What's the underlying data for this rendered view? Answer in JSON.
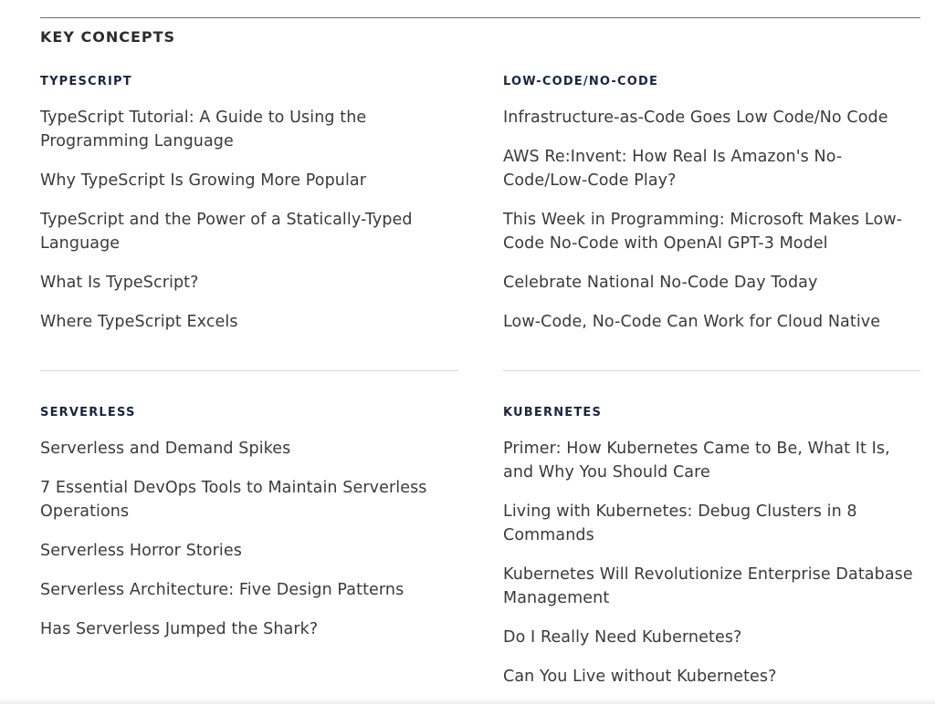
{
  "key_concepts_label": "KEY CONCEPTS",
  "sections": [
    {
      "heading": "TYPESCRIPT",
      "articles": [
        "TypeScript Tutorial: A Guide to Using the Programming Language",
        "Why TypeScript Is Growing More Popular",
        "TypeScript and the Power of a Statically-Typed Language",
        "What Is TypeScript?",
        "Where TypeScript Excels"
      ]
    },
    {
      "heading": "LOW-CODE/NO-CODE",
      "articles": [
        "Infrastructure-as-Code Goes Low Code/No Code",
        "AWS Re:Invent: How Real Is Amazon's No-Code/Low-Code Play?",
        "This Week in Programming: Microsoft Makes Low-Code No-Code with OpenAI GPT-3 Model",
        "Celebrate National No-Code Day Today",
        "Low-Code, No-Code Can Work for Cloud Native"
      ]
    },
    {
      "heading": "SERVERLESS",
      "articles": [
        "Serverless and Demand Spikes",
        "7 Essential DevOps Tools to Maintain Serverless Operations",
        "Serverless Horror Stories",
        "Serverless Architecture: Five Design Patterns",
        "Has Serverless Jumped the Shark?"
      ]
    },
    {
      "heading": "KUBERNETES",
      "articles": [
        "Primer: How Kubernetes Came to Be, What It Is, and Why You Should Care",
        "Living with Kubernetes: Debug Clusters in 8 Commands",
        "Kubernetes Will Revolutionize Enterprise Database Management",
        "Do I Really Need Kubernetes?",
        "Can You Live without Kubernetes?"
      ]
    }
  ]
}
